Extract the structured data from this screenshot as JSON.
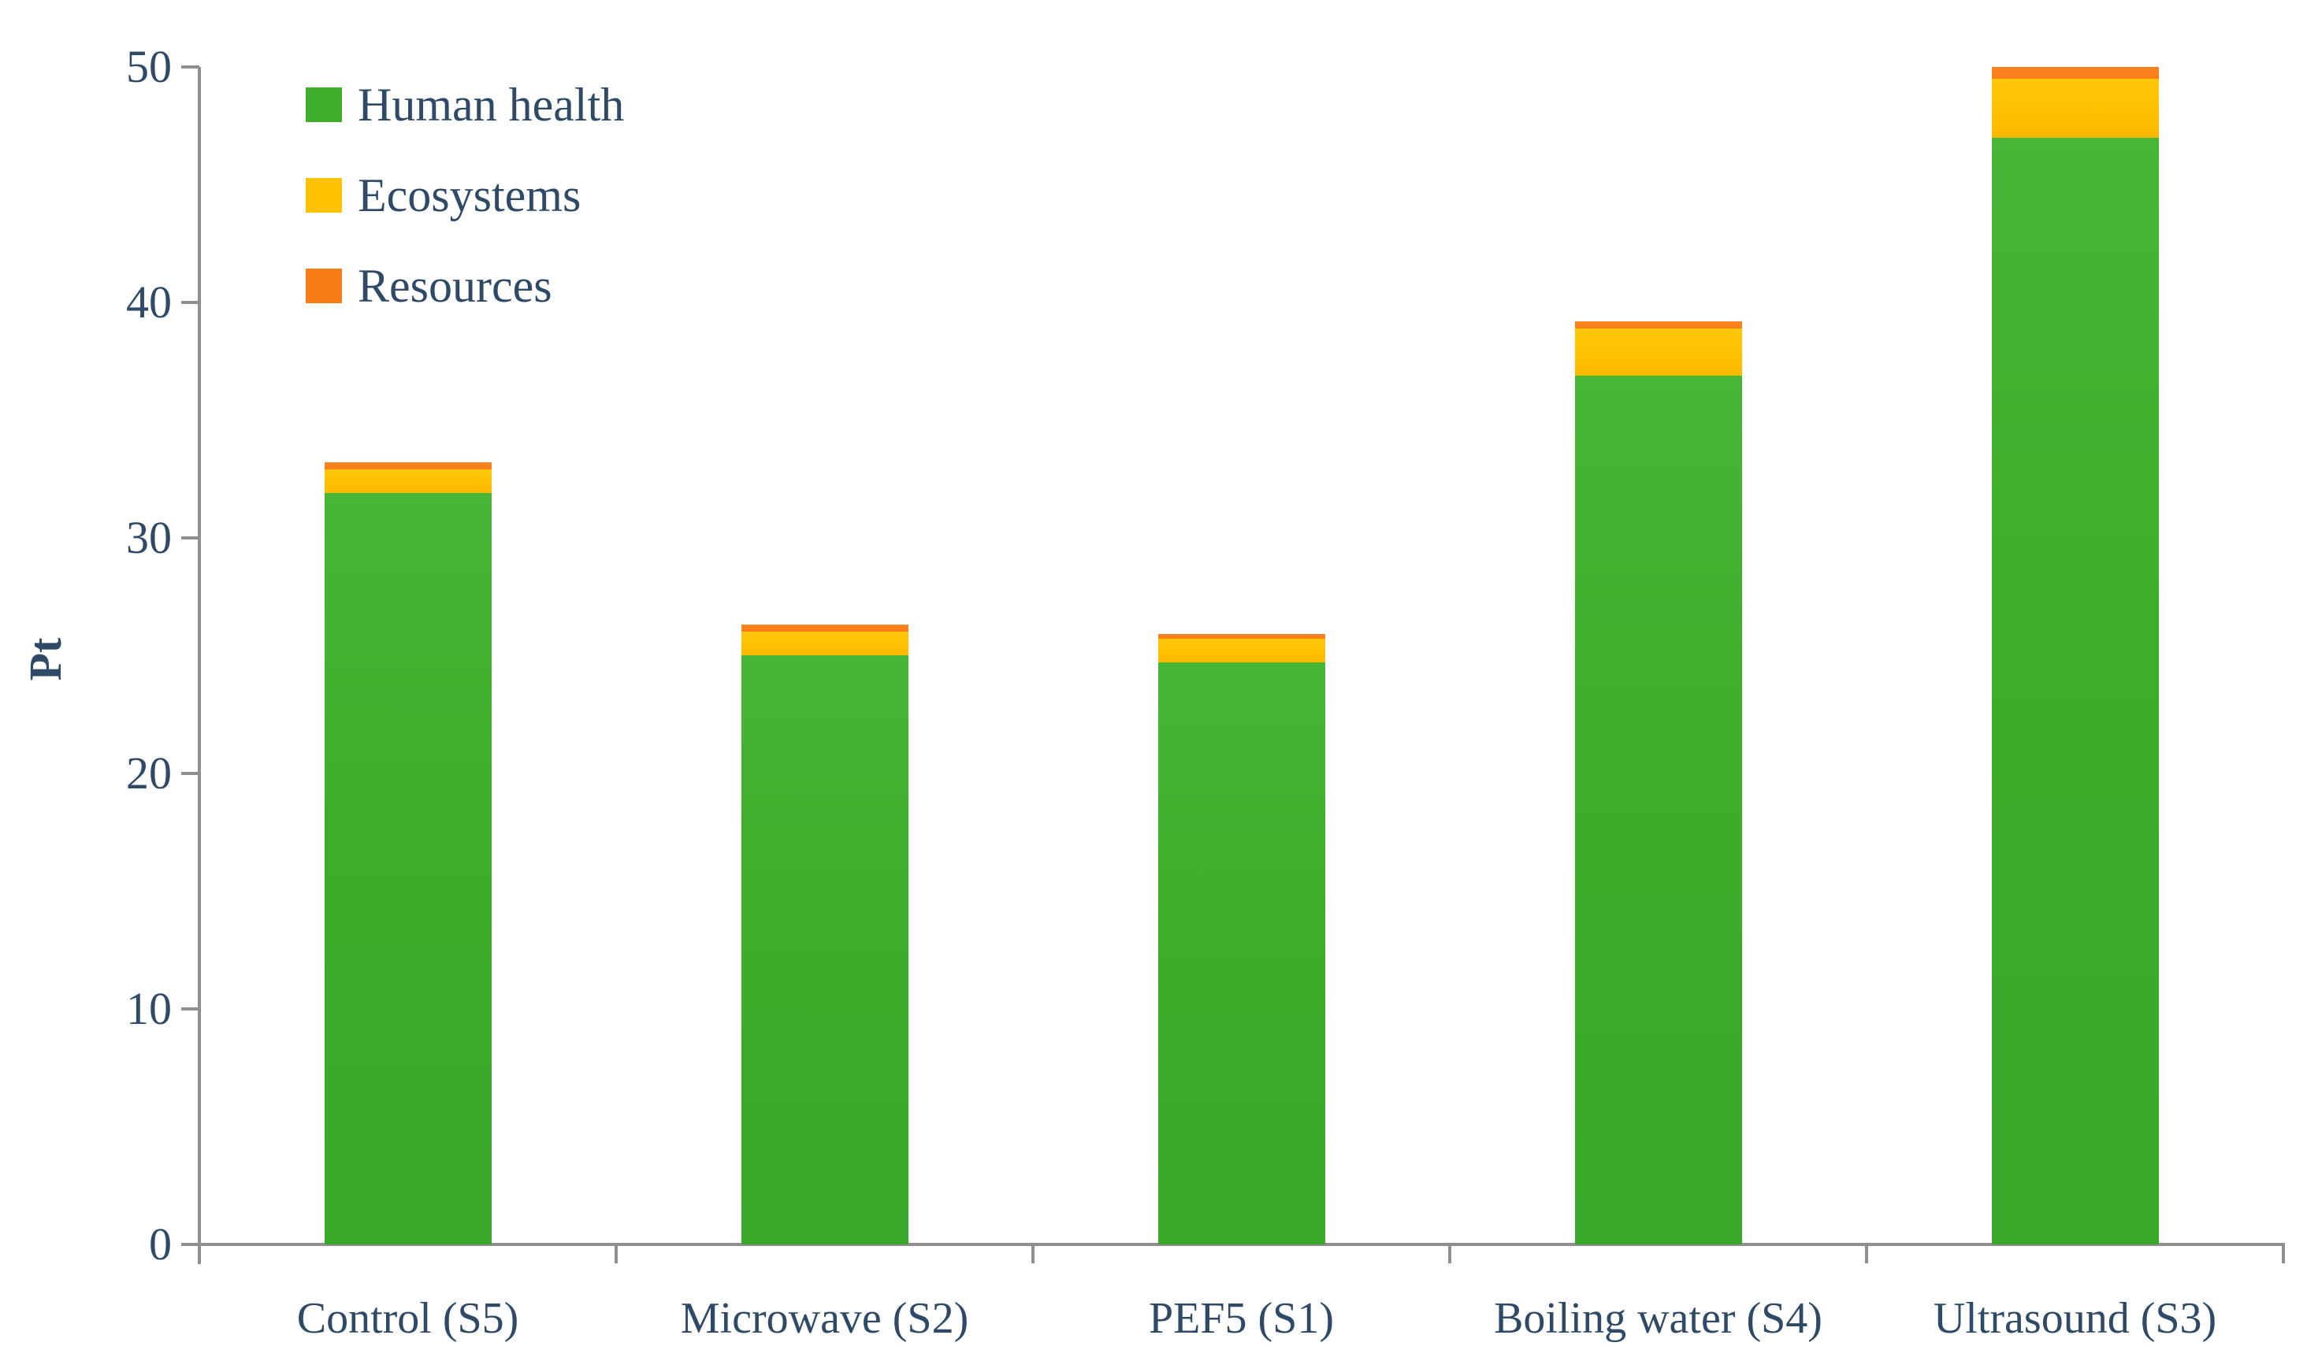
{
  "chart_data": {
    "type": "bar",
    "stacked": true,
    "title": "",
    "xlabel": "",
    "ylabel": "Pt",
    "ylim": [
      0,
      50
    ],
    "yticks": [
      0,
      10,
      20,
      30,
      40,
      50
    ],
    "grid": false,
    "legend_position": "top-left-inside",
    "categories": [
      "Control (S5)",
      "Microwave (S2)",
      "PEF5 (S1)",
      "Boiling water (S4)",
      "Ultrasound (S3)"
    ],
    "series": [
      {
        "name": "Human health",
        "color": "#3cae29",
        "values": [
          31.9,
          25.0,
          24.7,
          36.9,
          47.0
        ]
      },
      {
        "name": "Ecosystems",
        "color": "#ffc000",
        "values": [
          1.0,
          1.0,
          1.0,
          2.0,
          2.5
        ]
      },
      {
        "name": "Resources",
        "color": "#f97d16",
        "values": [
          0.3,
          0.3,
          0.2,
          0.3,
          0.5
        ]
      }
    ],
    "totals": [
      33.2,
      26.3,
      25.9,
      39.2,
      50.0
    ]
  },
  "legend": {
    "items": [
      {
        "label": "Human health",
        "swatch": "green-swatch"
      },
      {
        "label": "Ecosystems",
        "swatch": "yellow-swatch"
      },
      {
        "label": "Resources",
        "swatch": "orange-swatch"
      }
    ]
  },
  "colors": {
    "human_health": "#3cae29",
    "ecosystems": "#ffc000",
    "resources": "#f97d16",
    "text": "#2e4a66",
    "axis": "#8f8f8f"
  }
}
